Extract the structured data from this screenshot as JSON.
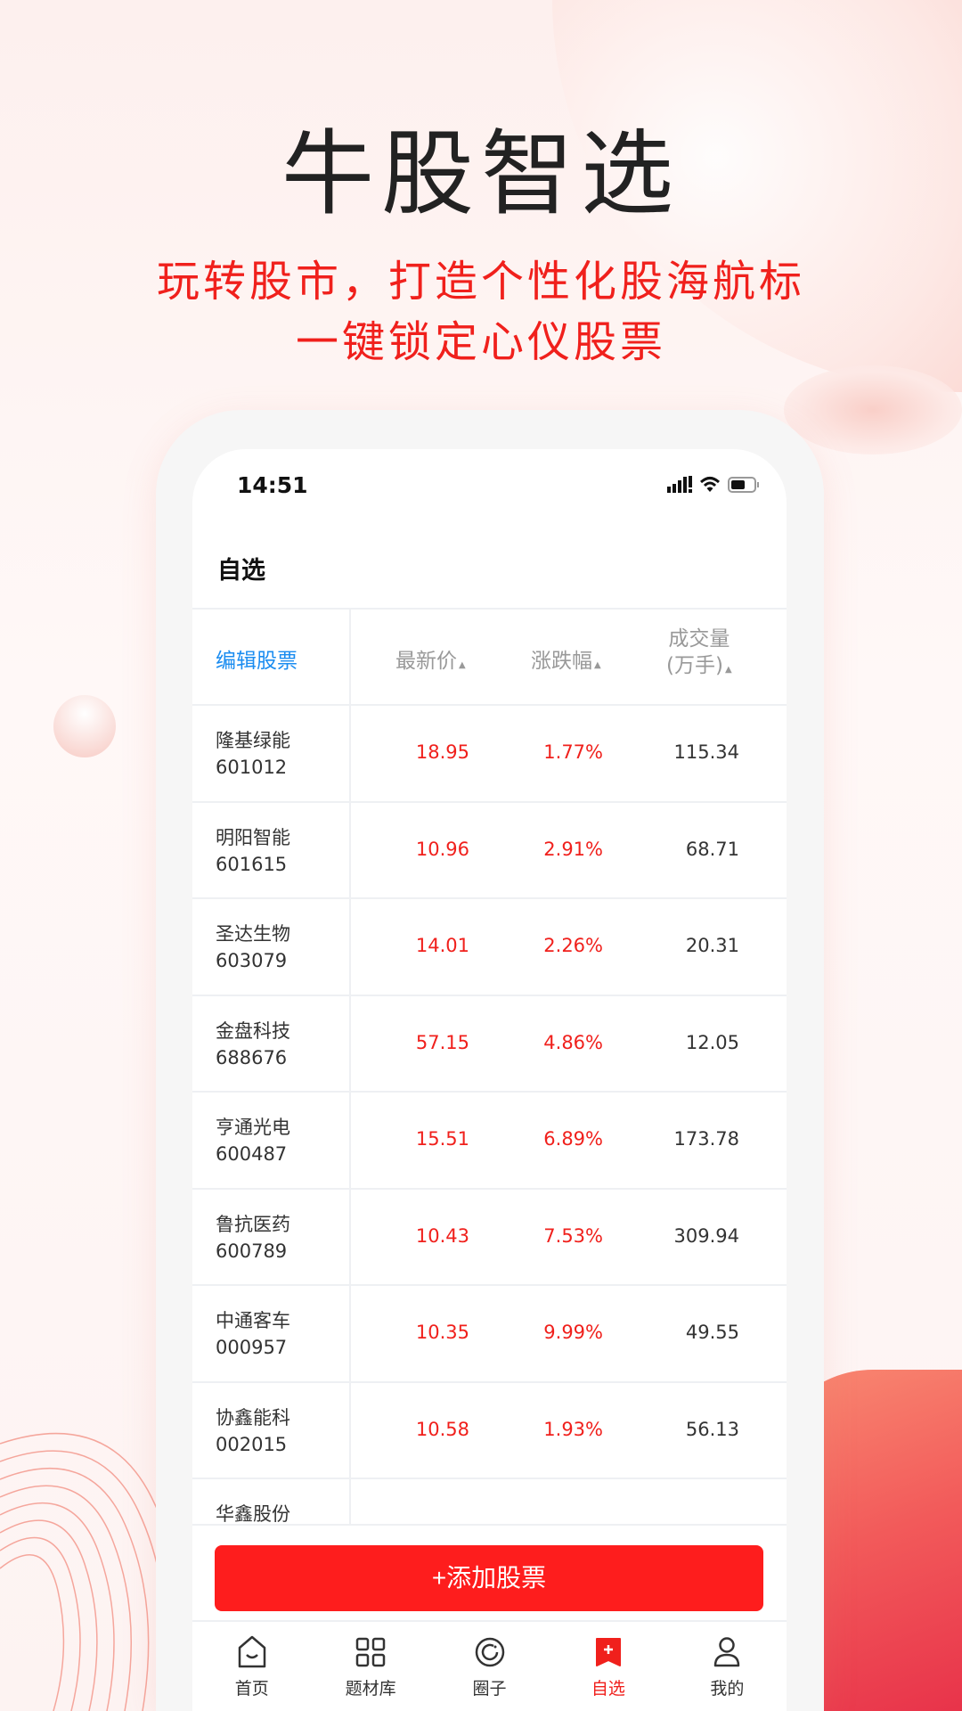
{
  "promo": {
    "title": "牛股智选",
    "subtitle_line1": "玩转股市，打造个性化股海航标",
    "subtitle_line2": "一键锁定心仪股票"
  },
  "status_bar": {
    "time": "14:51"
  },
  "header": {
    "title": "自选"
  },
  "table": {
    "edit_label": "编辑股票",
    "columns": [
      "最新价",
      "涨跌幅",
      "成交量",
      "(万手)"
    ],
    "rows": [
      {
        "name": "隆基绿能",
        "code": "601012",
        "price": "18.95",
        "change": "1.77%",
        "volume": "115.34"
      },
      {
        "name": "明阳智能",
        "code": "601615",
        "price": "10.96",
        "change": "2.91%",
        "volume": "68.71"
      },
      {
        "name": "圣达生物",
        "code": "603079",
        "price": "14.01",
        "change": "2.26%",
        "volume": "20.31"
      },
      {
        "name": "金盘科技",
        "code": "688676",
        "price": "57.15",
        "change": "4.86%",
        "volume": "12.05"
      },
      {
        "name": "亨通光电",
        "code": "600487",
        "price": "15.51",
        "change": "6.89%",
        "volume": "173.78"
      },
      {
        "name": "鲁抗医药",
        "code": "600789",
        "price": "10.43",
        "change": "7.53%",
        "volume": "309.94"
      },
      {
        "name": "中通客车",
        "code": "000957",
        "price": "10.35",
        "change": "9.99%",
        "volume": "49.55"
      },
      {
        "name": "协鑫能科",
        "code": "002015",
        "price": "10.58",
        "change": "1.93%",
        "volume": "56.13"
      },
      {
        "name": "华鑫股份",
        "code": ""
      }
    ]
  },
  "add_button": "+添加股票",
  "tabs": [
    {
      "label": "首页",
      "icon": "home-icon"
    },
    {
      "label": "题材库",
      "icon": "grid-icon"
    },
    {
      "label": "圈子",
      "icon": "circle-icon"
    },
    {
      "label": "自选",
      "icon": "add-bookmark-icon",
      "active": true
    },
    {
      "label": "我的",
      "icon": "user-icon"
    }
  ],
  "colors": {
    "accent": "#f0201c",
    "link": "#1a8cf0",
    "button": "#fe1d1d"
  }
}
